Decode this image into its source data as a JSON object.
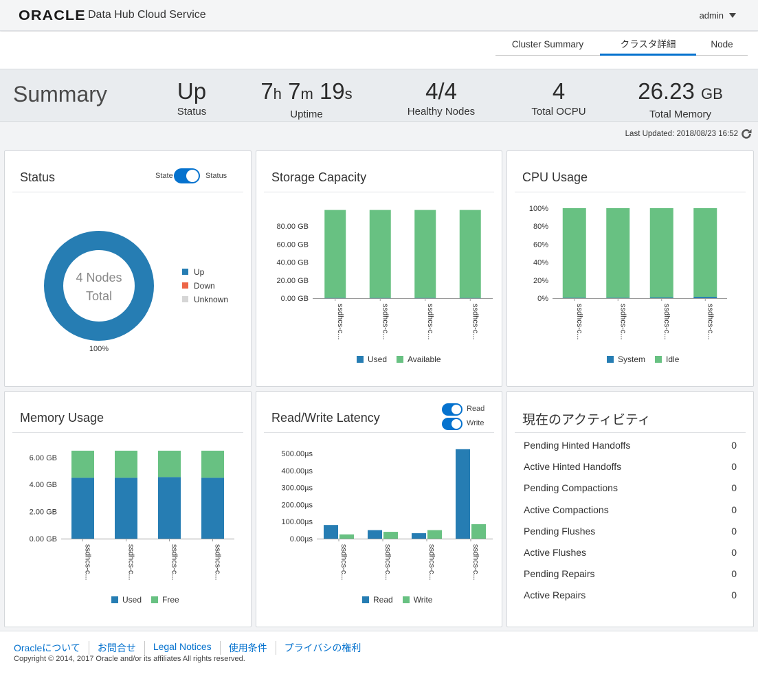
{
  "header": {
    "logo": "ORACLE",
    "app_title": "Data Hub Cloud Service",
    "user": "admin"
  },
  "tabs": [
    {
      "label": "Cluster Summary"
    },
    {
      "label": "クラスタ詳細"
    },
    {
      "label": "Node"
    }
  ],
  "summary": {
    "title": "Summary",
    "status": {
      "value": "Up",
      "label": "Status"
    },
    "uptime": {
      "h": "7",
      "h_unit": "h",
      "m": "7",
      "m_unit": "m",
      "s": "19",
      "s_unit": "s",
      "label": "Uptime"
    },
    "healthy": {
      "value": "4/4",
      "label": "Healthy Nodes"
    },
    "ocpu": {
      "value": "4",
      "label": "Total OCPU"
    },
    "memory": {
      "value": "26.23",
      "unit": "GB",
      "label": "Total Memory"
    }
  },
  "last_updated": "Last Updated: 2018/08/23 16:52",
  "status_panel": {
    "title": "Status",
    "toggle_left": "State",
    "toggle_right": "Status",
    "center_line1": "4 Nodes",
    "center_line2": "Total",
    "percent_label": "100%",
    "legend": [
      {
        "label": "Up",
        "color": "#267db3"
      },
      {
        "label": "Down",
        "color": "#ed6647"
      },
      {
        "label": "Unknown",
        "color": "#d6d6d6"
      }
    ]
  },
  "storage_panel": {
    "title": "Storage Capacity",
    "legend": [
      "Used",
      "Available"
    ]
  },
  "cpu_panel": {
    "title": "CPU Usage",
    "legend": [
      "System",
      "Idle"
    ]
  },
  "memory_panel": {
    "title": "Memory Usage",
    "legend": [
      "Used",
      "Free"
    ]
  },
  "latency_panel": {
    "title": "Read/Write Latency",
    "toggle_read": "Read",
    "toggle_write": "Write",
    "legend": [
      "Read",
      "Write"
    ]
  },
  "activity_panel": {
    "title": "現在のアクティビティ",
    "rows": [
      {
        "label": "Pending Hinted Handoffs",
        "value": "0"
      },
      {
        "label": "Active Hinted Handoffs",
        "value": "0"
      },
      {
        "label": "Pending Compactions",
        "value": "0"
      },
      {
        "label": "Active Compactions",
        "value": "0"
      },
      {
        "label": "Pending Flushes",
        "value": "0"
      },
      {
        "label": "Active Flushes",
        "value": "0"
      },
      {
        "label": "Pending Repairs",
        "value": "0"
      },
      {
        "label": "Active Repairs",
        "value": "0"
      }
    ]
  },
  "colors": {
    "blue": "#267db3",
    "green": "#68c182",
    "accent": "#0572ce"
  },
  "footer": {
    "links": [
      "Oracleについて",
      "お問合せ",
      "Legal Notices",
      "使用条件",
      "プライバシの権利"
    ],
    "copyright": "Copyright © 2014, 2017 Oracle and/or its affiliates All rights reserved."
  },
  "chart_data": [
    {
      "id": "status",
      "type": "pie",
      "title": "Status",
      "categories": [
        "Up",
        "Down",
        "Unknown"
      ],
      "values": [
        4,
        0,
        0
      ]
    },
    {
      "id": "storage",
      "type": "bar",
      "stacked": true,
      "title": "Storage Capacity",
      "categories": [
        "ssdhcs-c...",
        "ssdhcs-c...",
        "ssdhcs-c...",
        "ssdhcs-c..."
      ],
      "series": [
        {
          "name": "Used",
          "values": [
            0.3,
            0.3,
            0.3,
            0.3
          ]
        },
        {
          "name": "Available",
          "values": [
            97.7,
            97.7,
            97.7,
            97.7
          ]
        }
      ],
      "yticks": [
        "0.00 GB",
        "20.00 GB",
        "40.00 GB",
        "60.00 GB",
        "80.00 GB"
      ],
      "ylim": [
        0,
        100
      ]
    },
    {
      "id": "cpu",
      "type": "bar",
      "stacked": true,
      "title": "CPU Usage",
      "categories": [
        "ssdhcs-c...",
        "ssdhcs-c...",
        "ssdhcs-c...",
        "ssdhcs-c..."
      ],
      "series": [
        {
          "name": "System",
          "values": [
            0.5,
            0.5,
            0.8,
            1.5
          ]
        },
        {
          "name": "Idle",
          "values": [
            99.5,
            99.5,
            99.2,
            98.5
          ]
        }
      ],
      "yticks": [
        "0%",
        "20%",
        "40%",
        "60%",
        "80%",
        "100%"
      ],
      "ylim": [
        0,
        100
      ]
    },
    {
      "id": "memory",
      "type": "bar",
      "stacked": true,
      "title": "Memory Usage",
      "categories": [
        "ssdhcs-c...",
        "ssdhcs-c...",
        "ssdhcs-c...",
        "ssdhcs-c..."
      ],
      "series": [
        {
          "name": "Used",
          "values": [
            4.5,
            4.5,
            4.55,
            4.5
          ]
        },
        {
          "name": "Free",
          "values": [
            2.0,
            2.0,
            1.95,
            2.0
          ]
        }
      ],
      "yticks": [
        "0.00 GB",
        "2.00 GB",
        "4.00 GB",
        "6.00 GB"
      ],
      "ylim": [
        0,
        6.6
      ]
    },
    {
      "id": "latency",
      "type": "bar",
      "stacked": false,
      "title": "Read/Write Latency",
      "categories": [
        "ssdhcs-c...",
        "ssdhcs-c...",
        "ssdhcs-c...",
        "ssdhcs-c..."
      ],
      "series": [
        {
          "name": "Read",
          "values": [
            80,
            50,
            32,
            525
          ]
        },
        {
          "name": "Write",
          "values": [
            25,
            40,
            50,
            85
          ]
        }
      ],
      "yticks": [
        "0.00µs",
        "100.00µs",
        "200.00µs",
        "300.00µs",
        "400.00µs",
        "500.00µs"
      ],
      "ylim": [
        0,
        500
      ]
    }
  ]
}
